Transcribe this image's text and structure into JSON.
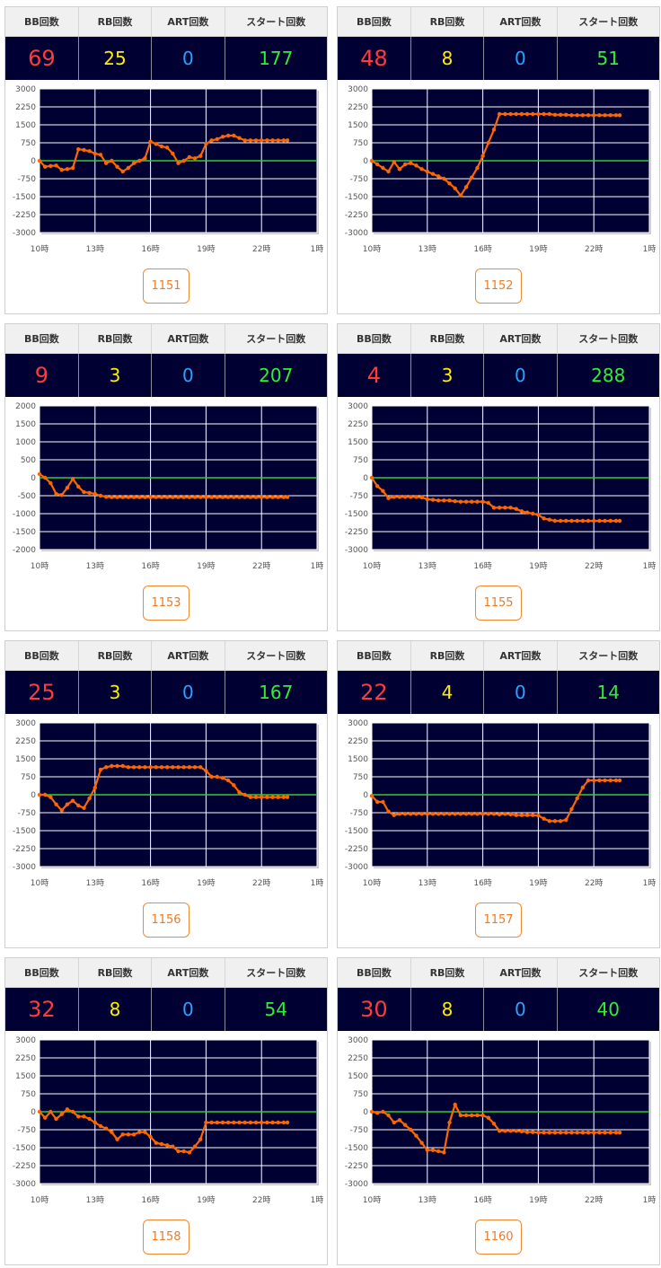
{
  "headers": {
    "bb": "BB回数",
    "rb": "RB回数",
    "art": "ART回数",
    "start": "スタート回数"
  },
  "colors": {
    "plot_bg": "#000033",
    "grid": "#ffffff",
    "zero_line": "#33cc33",
    "series": "#ff6600",
    "bb": "#ff3b3b",
    "rb": "#ffee00",
    "art": "#29a3ff",
    "start": "#33ee33",
    "button": "#f07a20"
  },
  "machines": [
    {
      "id": "1151",
      "bb": "69",
      "rb": "25",
      "art": "0",
      "start": "177",
      "chart_data": {
        "type": "line",
        "x_ticks": [
          "10時",
          "13時",
          "16時",
          "19時",
          "22時",
          "1時"
        ],
        "xlim": [
          10,
          25
        ],
        "y_ticks": [
          "3000",
          "2250",
          "1500",
          "750",
          "0",
          "-750",
          "-1500",
          "-2250",
          "-3000"
        ],
        "ylim": [
          -3000,
          3000
        ],
        "grid": true,
        "x": [
          10.0,
          10.3,
          10.6,
          10.9,
          11.2,
          11.5,
          11.8,
          12.1,
          12.4,
          12.7,
          13.0,
          13.3,
          13.6,
          13.9,
          14.2,
          14.5,
          14.8,
          15.1,
          15.4,
          15.7,
          16.0,
          16.3,
          16.6,
          16.9,
          17.2,
          17.5,
          17.8,
          18.1,
          18.4,
          18.7,
          19.0,
          19.3,
          19.6,
          19.9,
          20.2,
          20.5,
          20.8,
          21.1,
          21.4,
          21.7,
          22.0,
          22.3,
          22.6,
          22.9,
          23.2,
          23.4
        ],
        "y": [
          0,
          -250,
          -220,
          -200,
          -380,
          -350,
          -300,
          480,
          450,
          400,
          300,
          250,
          -100,
          0,
          -250,
          -450,
          -300,
          -100,
          0,
          100,
          800,
          700,
          600,
          550,
          300,
          -100,
          0,
          150,
          100,
          200,
          700,
          850,
          900,
          1000,
          1050,
          1050,
          950,
          850,
          850,
          850,
          850,
          850,
          850,
          850,
          850,
          850
        ]
      }
    },
    {
      "id": "1152",
      "bb": "48",
      "rb": "8",
      "art": "0",
      "start": "51",
      "chart_data": {
        "type": "line",
        "x_ticks": [
          "10時",
          "13時",
          "16時",
          "19時",
          "22時",
          "1時"
        ],
        "xlim": [
          10,
          25
        ],
        "y_ticks": [
          "3000",
          "2250",
          "1500",
          "750",
          "0",
          "-750",
          "-1500",
          "-2250",
          "-3000"
        ],
        "ylim": [
          -3000,
          3000
        ],
        "grid": true,
        "x": [
          10.0,
          10.3,
          10.6,
          10.9,
          11.2,
          11.5,
          11.8,
          12.1,
          12.4,
          12.7,
          13.0,
          13.3,
          13.6,
          13.9,
          14.2,
          14.5,
          14.8,
          15.1,
          15.4,
          15.7,
          16.0,
          16.3,
          16.6,
          16.9,
          17.2,
          17.5,
          17.8,
          18.1,
          18.4,
          18.7,
          19.0,
          19.3,
          19.6,
          19.9,
          20.2,
          20.5,
          20.8,
          21.1,
          21.4,
          21.7,
          22.0,
          22.3,
          22.6,
          22.9,
          23.2,
          23.4
        ],
        "y": [
          0,
          -150,
          -300,
          -450,
          -50,
          -350,
          -150,
          -100,
          -200,
          -350,
          -450,
          -550,
          -650,
          -750,
          -950,
          -1150,
          -1450,
          -1100,
          -700,
          -300,
          200,
          750,
          1300,
          1950,
          1950,
          1950,
          1950,
          1950,
          1950,
          1950,
          1950,
          1950,
          1950,
          1920,
          1920,
          1920,
          1900,
          1900,
          1900,
          1900,
          1900,
          1900,
          1900,
          1900,
          1900,
          1900
        ]
      }
    },
    {
      "id": "1153",
      "bb": "9",
      "rb": "3",
      "art": "0",
      "start": "207",
      "chart_data": {
        "type": "line",
        "x_ticks": [
          "10時",
          "13時",
          "16時",
          "19時",
          "22時",
          "1時"
        ],
        "xlim": [
          10,
          25
        ],
        "y_ticks": [
          "2000",
          "1500",
          "1000",
          "500",
          "0",
          "-500",
          "-1000",
          "-1500",
          "-2000"
        ],
        "ylim": [
          -2000,
          2000
        ],
        "grid": true,
        "x": [
          10.0,
          10.3,
          10.6,
          10.9,
          11.2,
          11.5,
          11.8,
          12.1,
          12.4,
          12.7,
          13.0,
          13.3,
          13.6,
          13.9,
          14.2,
          14.5,
          14.8,
          15.1,
          15.4,
          15.7,
          16.0,
          16.3,
          16.6,
          16.9,
          17.2,
          17.5,
          17.8,
          18.1,
          18.4,
          18.7,
          19.0,
          19.3,
          19.6,
          19.9,
          20.2,
          20.5,
          20.8,
          21.1,
          21.4,
          21.7,
          22.0,
          22.3,
          22.6,
          22.9,
          23.2,
          23.4
        ],
        "y": [
          100,
          0,
          -150,
          -450,
          -480,
          -280,
          -30,
          -250,
          -400,
          -420,
          -450,
          -500,
          -530,
          -540,
          -540,
          -540,
          -540,
          -540,
          -540,
          -540,
          -540,
          -540,
          -540,
          -540,
          -540,
          -540,
          -540,
          -540,
          -540,
          -540,
          -540,
          -540,
          -540,
          -540,
          -540,
          -540,
          -540,
          -540,
          -540,
          -540,
          -540,
          -540,
          -540,
          -540,
          -540,
          -540
        ]
      }
    },
    {
      "id": "1155",
      "bb": "4",
      "rb": "3",
      "art": "0",
      "start": "288",
      "chart_data": {
        "type": "line",
        "x_ticks": [
          "10時",
          "13時",
          "16時",
          "19時",
          "22時",
          "1時"
        ],
        "xlim": [
          10,
          25
        ],
        "y_ticks": [
          "3000",
          "2250",
          "1500",
          "750",
          "0",
          "-750",
          "-1500",
          "-2250",
          "-3000"
        ],
        "ylim": [
          -3000,
          3000
        ],
        "grid": true,
        "x": [
          10.0,
          10.3,
          10.6,
          10.9,
          11.2,
          11.5,
          11.8,
          12.1,
          12.4,
          12.7,
          13.0,
          13.3,
          13.6,
          13.9,
          14.2,
          14.5,
          14.8,
          15.1,
          15.4,
          15.7,
          16.0,
          16.3,
          16.6,
          16.9,
          17.2,
          17.5,
          17.8,
          18.1,
          18.4,
          18.7,
          19.0,
          19.3,
          19.6,
          19.9,
          20.2,
          20.5,
          20.8,
          21.1,
          21.4,
          21.7,
          22.0,
          22.3,
          22.6,
          22.9,
          23.2,
          23.4
        ],
        "y": [
          0,
          -350,
          -550,
          -850,
          -800,
          -800,
          -800,
          -800,
          -800,
          -820,
          -900,
          -920,
          -950,
          -950,
          -950,
          -980,
          -1000,
          -1000,
          -1000,
          -1000,
          -1000,
          -1050,
          -1250,
          -1250,
          -1250,
          -1250,
          -1300,
          -1400,
          -1450,
          -1500,
          -1550,
          -1700,
          -1750,
          -1800,
          -1800,
          -1800,
          -1800,
          -1800,
          -1800,
          -1800,
          -1800,
          -1800,
          -1800,
          -1800,
          -1800,
          -1800
        ]
      }
    },
    {
      "id": "1156",
      "bb": "25",
      "rb": "3",
      "art": "0",
      "start": "167",
      "chart_data": {
        "type": "line",
        "x_ticks": [
          "10時",
          "13時",
          "16時",
          "19時",
          "22時",
          "1時"
        ],
        "xlim": [
          10,
          25
        ],
        "y_ticks": [
          "3000",
          "2250",
          "1500",
          "750",
          "0",
          "-750",
          "-1500",
          "-2250",
          "-3000"
        ],
        "ylim": [
          -3000,
          3000
        ],
        "grid": true,
        "x": [
          10.0,
          10.3,
          10.6,
          10.9,
          11.2,
          11.5,
          11.8,
          12.1,
          12.4,
          12.7,
          13.0,
          13.3,
          13.6,
          13.9,
          14.2,
          14.5,
          14.8,
          15.1,
          15.4,
          15.7,
          16.0,
          16.3,
          16.6,
          16.9,
          17.2,
          17.5,
          17.8,
          18.1,
          18.4,
          18.7,
          19.0,
          19.3,
          19.6,
          19.9,
          20.2,
          20.5,
          20.8,
          21.1,
          21.4,
          21.7,
          22.0,
          22.3,
          22.6,
          22.9,
          23.2,
          23.4
        ],
        "y": [
          0,
          0,
          -100,
          -400,
          -650,
          -400,
          -250,
          -450,
          -550,
          -150,
          300,
          1050,
          1150,
          1200,
          1200,
          1200,
          1150,
          1150,
          1150,
          1150,
          1150,
          1150,
          1150,
          1150,
          1150,
          1150,
          1150,
          1150,
          1150,
          1150,
          1000,
          750,
          750,
          700,
          600,
          400,
          100,
          0,
          -100,
          -100,
          -100,
          -100,
          -100,
          -100,
          -100,
          -100
        ]
      }
    },
    {
      "id": "1157",
      "bb": "22",
      "rb": "4",
      "art": "0",
      "start": "14",
      "chart_data": {
        "type": "line",
        "x_ticks": [
          "10時",
          "13時",
          "16時",
          "19時",
          "22時",
          "1時"
        ],
        "xlim": [
          10,
          25
        ],
        "y_ticks": [
          "3000",
          "2250",
          "1500",
          "750",
          "0",
          "-750",
          "-1500",
          "-2250",
          "-3000"
        ],
        "ylim": [
          -3000,
          3000
        ],
        "grid": true,
        "x": [
          10.0,
          10.3,
          10.6,
          10.9,
          11.2,
          11.5,
          11.8,
          12.1,
          12.4,
          12.7,
          13.0,
          13.3,
          13.6,
          13.9,
          14.2,
          14.5,
          14.8,
          15.1,
          15.4,
          15.7,
          16.0,
          16.3,
          16.6,
          16.9,
          17.2,
          17.5,
          17.8,
          18.1,
          18.4,
          18.7,
          19.0,
          19.3,
          19.6,
          19.9,
          20.2,
          20.5,
          20.8,
          21.1,
          21.4,
          21.7,
          22.0,
          22.3,
          22.6,
          22.9,
          23.2,
          23.4
        ],
        "y": [
          -50,
          -300,
          -300,
          -700,
          -850,
          -800,
          -800,
          -800,
          -800,
          -800,
          -800,
          -800,
          -800,
          -800,
          -800,
          -800,
          -800,
          -800,
          -800,
          -800,
          -800,
          -800,
          -800,
          -820,
          -800,
          -820,
          -850,
          -850,
          -850,
          -850,
          -870,
          -1000,
          -1100,
          -1100,
          -1100,
          -1050,
          -600,
          -150,
          300,
          600,
          600,
          600,
          600,
          600,
          600,
          600
        ]
      }
    },
    {
      "id": "1158",
      "bb": "32",
      "rb": "8",
      "art": "0",
      "start": "54",
      "chart_data": {
        "type": "line",
        "x_ticks": [
          "10時",
          "13時",
          "16時",
          "19時",
          "22時",
          "1時"
        ],
        "xlim": [
          10,
          25
        ],
        "y_ticks": [
          "3000",
          "2250",
          "1500",
          "750",
          "0",
          "-750",
          "-1500",
          "-2250",
          "-3000"
        ],
        "ylim": [
          -3000,
          3000
        ],
        "grid": true,
        "x": [
          10.0,
          10.3,
          10.6,
          10.9,
          11.2,
          11.5,
          11.8,
          12.1,
          12.4,
          12.7,
          13.0,
          13.3,
          13.6,
          13.9,
          14.2,
          14.5,
          14.8,
          15.1,
          15.4,
          15.7,
          16.0,
          16.3,
          16.6,
          16.9,
          17.2,
          17.5,
          17.8,
          18.1,
          18.4,
          18.7,
          19.0,
          19.3,
          19.6,
          19.9,
          20.2,
          20.5,
          20.8,
          21.1,
          21.4,
          21.7,
          22.0,
          22.3,
          22.6,
          22.9,
          23.2,
          23.4
        ],
        "y": [
          0,
          -250,
          0,
          -300,
          -100,
          100,
          0,
          -200,
          -200,
          -300,
          -450,
          -600,
          -700,
          -850,
          -1150,
          -950,
          -950,
          -950,
          -850,
          -850,
          -1050,
          -1300,
          -1350,
          -1400,
          -1450,
          -1650,
          -1650,
          -1700,
          -1450,
          -1150,
          -450,
          -450,
          -450,
          -450,
          -450,
          -450,
          -450,
          -450,
          -450,
          -450,
          -450,
          -450,
          -450,
          -450,
          -450,
          -450
        ]
      }
    },
    {
      "id": "1160",
      "bb": "30",
      "rb": "8",
      "art": "0",
      "start": "40",
      "chart_data": {
        "type": "line",
        "x_ticks": [
          "10時",
          "13時",
          "16時",
          "19時",
          "22時",
          "1時"
        ],
        "xlim": [
          10,
          25
        ],
        "y_ticks": [
          "3000",
          "2250",
          "1500",
          "750",
          "0",
          "-750",
          "-1500",
          "-2250",
          "-3000"
        ],
        "ylim": [
          -3000,
          3000
        ],
        "grid": true,
        "x": [
          10.0,
          10.3,
          10.6,
          10.9,
          11.2,
          11.5,
          11.8,
          12.1,
          12.4,
          12.7,
          13.0,
          13.3,
          13.6,
          13.9,
          14.2,
          14.5,
          14.8,
          15.1,
          15.4,
          15.7,
          16.0,
          16.3,
          16.6,
          16.9,
          17.2,
          17.5,
          17.8,
          18.1,
          18.4,
          18.7,
          19.0,
          19.3,
          19.6,
          19.9,
          20.2,
          20.5,
          20.8,
          21.1,
          21.4,
          21.7,
          22.0,
          22.3,
          22.6,
          22.9,
          23.2,
          23.4
        ],
        "y": [
          0,
          -50,
          0,
          -150,
          -450,
          -350,
          -550,
          -750,
          -1000,
          -1300,
          -1600,
          -1600,
          -1650,
          -1700,
          -450,
          300,
          -150,
          -150,
          -150,
          -150,
          -150,
          -250,
          -500,
          -800,
          -800,
          -800,
          -800,
          -820,
          -850,
          -850,
          -870,
          -870,
          -870,
          -870,
          -870,
          -870,
          -870,
          -870,
          -870,
          -870,
          -870,
          -870,
          -870,
          -870,
          -870,
          -870
        ]
      }
    }
  ]
}
